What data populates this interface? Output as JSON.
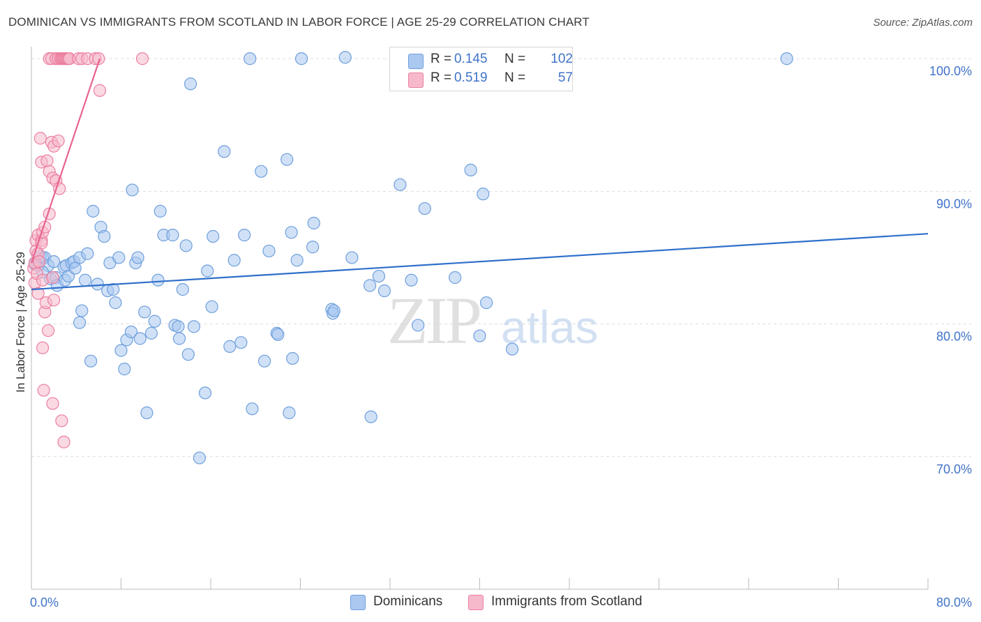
{
  "header": {
    "title": "DOMINICAN VS IMMIGRANTS FROM SCOTLAND IN LABOR FORCE | AGE 25-29 CORRELATION CHART",
    "source": "Source: ZipAtlas.com"
  },
  "legend_box": {
    "rows": [
      {
        "r_label": "R =",
        "r_value": "0.145",
        "n_label": "N =",
        "n_value": "102"
      },
      {
        "r_label": "R =",
        "r_value": "0.519",
        "n_label": "N =",
        "n_value": "57"
      }
    ]
  },
  "bottom_legend": {
    "items": [
      {
        "label": "Dominicans"
      },
      {
        "label": "Immigrants from Scotland"
      }
    ]
  },
  "watermark": {
    "part1": "ZIP",
    "part2": "atlas"
  },
  "colors": {
    "blue_fill": "#aac8f0",
    "blue_stroke": "#6e9fdc",
    "blue_line": "#2f6fcb",
    "pink_fill": "#f6b9cc",
    "pink_stroke": "#ec7fa0",
    "pink_line": "#e8638f",
    "tick_label": "#3f73c8",
    "grid": "#dddddd"
  },
  "chart_data": {
    "type": "scatter",
    "title": "DOMINICAN VS IMMIGRANTS FROM SCOTLAND IN LABOR FORCE | AGE 25-29 CORRELATION CHART",
    "xlabel": "",
    "ylabel": "In Labor Force | Age 25-29",
    "xlim": [
      0,
      80
    ],
    "ylim": [
      60,
      100.9
    ],
    "x_tick_labels": [
      {
        "value": 0,
        "label": "0.0%"
      },
      {
        "value": 80,
        "label": "80.0%"
      }
    ],
    "y_tick_labels": [
      {
        "value": 100,
        "label": "100.0%"
      },
      {
        "value": 90,
        "label": "90.0%"
      },
      {
        "value": 80,
        "label": "80.0%"
      },
      {
        "value": 70,
        "label": "70.0%"
      }
    ],
    "grid": true,
    "series": [
      {
        "name": "Dominicans",
        "R": 0.145,
        "N": 102,
        "trendline": {
          "x": [
            0,
            80
          ],
          "y": [
            82.6,
            86.8
          ]
        },
        "points": [
          [
            0.3,
            84.5
          ],
          [
            0.6,
            84.4
          ],
          [
            0.8,
            85.1
          ],
          [
            1.0,
            85.0
          ],
          [
            1.2,
            85.0
          ],
          [
            1.5,
            84.4
          ],
          [
            1.7,
            83.4
          ],
          [
            2.0,
            84.7
          ],
          [
            2.2,
            83.5
          ],
          [
            2.3,
            82.9
          ],
          [
            2.9,
            84.3
          ],
          [
            3.0,
            83.3
          ],
          [
            3.1,
            84.4
          ],
          [
            3.3,
            83.6
          ],
          [
            3.6,
            84.6
          ],
          [
            3.8,
            84.7
          ],
          [
            3.9,
            84.2
          ],
          [
            4.3,
            85.0
          ],
          [
            4.3,
            80.1
          ],
          [
            4.5,
            81.0
          ],
          [
            4.8,
            83.3
          ],
          [
            5.0,
            85.3
          ],
          [
            5.3,
            77.2
          ],
          [
            5.5,
            88.5
          ],
          [
            5.9,
            83.0
          ],
          [
            6.2,
            87.3
          ],
          [
            6.5,
            86.6
          ],
          [
            6.8,
            82.5
          ],
          [
            7.0,
            84.6
          ],
          [
            7.3,
            82.6
          ],
          [
            7.5,
            81.6
          ],
          [
            7.8,
            85.0
          ],
          [
            8.0,
            78.0
          ],
          [
            8.3,
            76.6
          ],
          [
            8.5,
            78.8
          ],
          [
            8.9,
            79.4
          ],
          [
            9.0,
            90.1
          ],
          [
            9.3,
            84.6
          ],
          [
            9.5,
            85.0
          ],
          [
            9.7,
            78.9
          ],
          [
            10.1,
            80.9
          ],
          [
            10.3,
            73.3
          ],
          [
            10.7,
            79.3
          ],
          [
            11.0,
            80.2
          ],
          [
            11.3,
            83.3
          ],
          [
            11.5,
            88.5
          ],
          [
            11.8,
            86.7
          ],
          [
            12.6,
            86.7
          ],
          [
            12.8,
            79.9
          ],
          [
            13.1,
            79.8
          ],
          [
            13.2,
            78.9
          ],
          [
            13.5,
            82.6
          ],
          [
            13.8,
            85.9
          ],
          [
            14.0,
            77.7
          ],
          [
            14.2,
            98.1
          ],
          [
            14.5,
            79.8
          ],
          [
            15.0,
            69.9
          ],
          [
            15.5,
            74.8
          ],
          [
            15.7,
            84.0
          ],
          [
            16.1,
            81.3
          ],
          [
            16.2,
            86.6
          ],
          [
            17.2,
            93.0
          ],
          [
            17.7,
            78.3
          ],
          [
            18.1,
            84.8
          ],
          [
            18.7,
            78.6
          ],
          [
            19.0,
            86.7
          ],
          [
            19.5,
            100.0
          ],
          [
            19.7,
            73.6
          ],
          [
            20.5,
            91.5
          ],
          [
            20.8,
            77.2
          ],
          [
            21.2,
            85.5
          ],
          [
            21.9,
            79.3
          ],
          [
            22.0,
            79.2
          ],
          [
            22.8,
            92.4
          ],
          [
            23.0,
            73.3
          ],
          [
            23.2,
            86.9
          ],
          [
            23.3,
            77.4
          ],
          [
            23.7,
            84.8
          ],
          [
            24.1,
            100.0
          ],
          [
            25.1,
            85.8
          ],
          [
            25.2,
            87.6
          ],
          [
            26.8,
            81.1
          ],
          [
            26.9,
            80.8
          ],
          [
            27.0,
            81.0
          ],
          [
            28.0,
            100.1
          ],
          [
            28.6,
            85.0
          ],
          [
            30.2,
            82.9
          ],
          [
            30.3,
            73.0
          ],
          [
            31.0,
            83.6
          ],
          [
            31.5,
            82.5
          ],
          [
            32.9,
            90.5
          ],
          [
            33.9,
            83.3
          ],
          [
            34.5,
            79.9
          ],
          [
            35.1,
            88.7
          ],
          [
            37.8,
            83.5
          ],
          [
            39.2,
            91.6
          ],
          [
            40.0,
            79.1
          ],
          [
            40.3,
            89.8
          ],
          [
            40.6,
            81.6
          ],
          [
            42.9,
            78.1
          ],
          [
            67.4,
            100.0
          ],
          [
            1.0,
            83.9
          ]
        ]
      },
      {
        "name": "Immigrants from Scotland",
        "R": 0.519,
        "N": 57,
        "trendline": {
          "x": [
            0,
            6.1
          ],
          "y": [
            84.6,
            100.0
          ]
        },
        "points": [
          [
            0.2,
            84.2
          ],
          [
            0.3,
            84.6
          ],
          [
            0.3,
            83.1
          ],
          [
            0.4,
            85.5
          ],
          [
            0.4,
            86.3
          ],
          [
            0.5,
            83.8
          ],
          [
            0.6,
            85.3
          ],
          [
            0.6,
            86.7
          ],
          [
            0.6,
            82.3
          ],
          [
            0.7,
            84.7
          ],
          [
            0.8,
            94.0
          ],
          [
            0.9,
            86.3
          ],
          [
            0.9,
            86.1
          ],
          [
            0.9,
            92.2
          ],
          [
            1.0,
            78.2
          ],
          [
            1.0,
            83.3
          ],
          [
            1.0,
            86.9
          ],
          [
            1.1,
            75.0
          ],
          [
            1.2,
            80.9
          ],
          [
            1.2,
            87.3
          ],
          [
            1.3,
            81.6
          ],
          [
            1.4,
            92.3
          ],
          [
            1.5,
            79.5
          ],
          [
            1.6,
            91.5
          ],
          [
            1.6,
            88.3
          ],
          [
            1.6,
            100.0
          ],
          [
            1.8,
            100.0
          ],
          [
            1.8,
            93.7
          ],
          [
            1.9,
            83.5
          ],
          [
            1.9,
            74.0
          ],
          [
            1.9,
            91.0
          ],
          [
            2.0,
            93.4
          ],
          [
            2.0,
            81.8
          ],
          [
            2.2,
            100.0
          ],
          [
            2.2,
            100.0
          ],
          [
            2.2,
            90.8
          ],
          [
            2.4,
            93.8
          ],
          [
            2.4,
            100.0
          ],
          [
            2.5,
            90.2
          ],
          [
            2.6,
            100.0
          ],
          [
            2.7,
            100.0
          ],
          [
            2.7,
            72.7
          ],
          [
            2.8,
            100.0
          ],
          [
            2.9,
            100.0
          ],
          [
            2.9,
            71.1
          ],
          [
            3.0,
            100.0
          ],
          [
            3.1,
            100.0
          ],
          [
            3.2,
            100.0
          ],
          [
            3.3,
            100.0
          ],
          [
            3.4,
            100.0
          ],
          [
            4.2,
            100.0
          ],
          [
            4.5,
            100.0
          ],
          [
            5.0,
            100.0
          ],
          [
            5.7,
            100.0
          ],
          [
            6.0,
            100.0
          ],
          [
            6.1,
            97.6
          ],
          [
            9.9,
            100.0
          ]
        ]
      }
    ]
  }
}
